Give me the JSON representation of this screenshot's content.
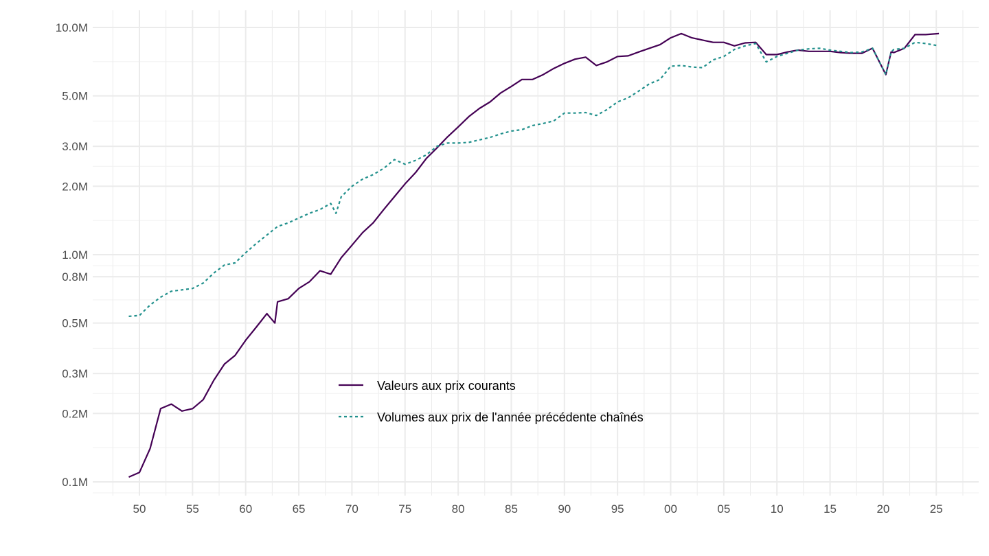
{
  "chart_data": {
    "type": "line",
    "title": "",
    "xlabel": "",
    "ylabel": "",
    "y_scale": "log10",
    "ylim": [
      0.09,
      11
    ],
    "xlim": [
      1947,
      2028
    ],
    "grid": true,
    "legend_position": "bottom-center inside plot",
    "x_ticks": [
      {
        "year": 1950,
        "label": "50"
      },
      {
        "year": 1955,
        "label": "55"
      },
      {
        "year": 1960,
        "label": "60"
      },
      {
        "year": 1965,
        "label": "65"
      },
      {
        "year": 1970,
        "label": "70"
      },
      {
        "year": 1975,
        "label": "75"
      },
      {
        "year": 1980,
        "label": "80"
      },
      {
        "year": 1985,
        "label": "85"
      },
      {
        "year": 1990,
        "label": "90"
      },
      {
        "year": 1995,
        "label": "95"
      },
      {
        "year": 2000,
        "label": "00"
      },
      {
        "year": 2005,
        "label": "05"
      },
      {
        "year": 2010,
        "label": "10"
      },
      {
        "year": 2015,
        "label": "15"
      },
      {
        "year": 2020,
        "label": "20"
      },
      {
        "year": 2025,
        "label": "25"
      }
    ],
    "y_ticks": [
      {
        "value": 0.1,
        "label": "0.1M"
      },
      {
        "value": 0.2,
        "label": "0.2M"
      },
      {
        "value": 0.3,
        "label": "0.3M"
      },
      {
        "value": 0.5,
        "label": "0.5M"
      },
      {
        "value": 0.8,
        "label": "0.8M"
      },
      {
        "value": 1.0,
        "label": "1.0M"
      },
      {
        "value": 2.0,
        "label": "2.0M"
      },
      {
        "value": 3.0,
        "label": "3.0M"
      },
      {
        "value": 5.0,
        "label": "5.0M"
      },
      {
        "value": 10.0,
        "label": "10.0M"
      }
    ],
    "series": [
      {
        "name": "Valeurs aux prix courants",
        "color": "#440154",
        "style": "solid",
        "x": [
          1949,
          1950,
          1951,
          1952,
          1953,
          1954,
          1955,
          1956,
          1957,
          1958,
          1959,
          1960,
          1961,
          1962,
          1962.75,
          1963,
          1964,
          1965,
          1966,
          1967,
          1968,
          1969,
          1970,
          1971,
          1972,
          1973,
          1974,
          1975,
          1976,
          1977,
          1978,
          1979,
          1980,
          1981,
          1982,
          1983,
          1984,
          1985,
          1986,
          1987,
          1988,
          1989,
          1990,
          1991,
          1992,
          1993,
          1994,
          1995,
          1996,
          1997,
          1998,
          1999,
          2000,
          2001,
          2002,
          2003,
          2004,
          2005,
          2006,
          2007,
          2008,
          2009,
          2010,
          2011,
          2012,
          2013,
          2014,
          2015,
          2016,
          2017,
          2018,
          2019,
          2020.25,
          2020.75,
          2021,
          2022,
          2023,
          2024,
          2025.25
        ],
        "values": [
          0.105,
          0.11,
          0.14,
          0.21,
          0.22,
          0.205,
          0.21,
          0.23,
          0.28,
          0.33,
          0.36,
          0.42,
          0.48,
          0.55,
          0.5,
          0.62,
          0.64,
          0.71,
          0.76,
          0.85,
          0.82,
          0.97,
          1.1,
          1.25,
          1.38,
          1.58,
          1.8,
          2.05,
          2.3,
          2.65,
          2.95,
          3.3,
          3.65,
          4.05,
          4.4,
          4.7,
          5.15,
          5.5,
          5.9,
          5.9,
          6.2,
          6.6,
          6.95,
          7.25,
          7.4,
          6.8,
          7.05,
          7.45,
          7.5,
          7.8,
          8.1,
          8.4,
          9.0,
          9.4,
          9.0,
          8.8,
          8.6,
          8.6,
          8.3,
          8.55,
          8.6,
          7.6,
          7.6,
          7.8,
          7.95,
          7.85,
          7.85,
          7.85,
          7.75,
          7.7,
          7.7,
          8.1,
          6.2,
          7.8,
          7.75,
          8.1,
          9.3,
          9.3,
          9.4
        ]
      },
      {
        "name": "Volumes aux prix de l'année précédente chaînés",
        "color": "#21908C",
        "style": "dashed",
        "x": [
          1949,
          1950,
          1951,
          1952,
          1953,
          1954,
          1955,
          1956,
          1957,
          1958,
          1959,
          1960,
          1961,
          1962,
          1963,
          1964,
          1965,
          1966,
          1967,
          1968,
          1968.5,
          1969,
          1970,
          1971,
          1972,
          1973,
          1974,
          1975,
          1976,
          1977,
          1978,
          1979,
          1980,
          1981,
          1982,
          1983,
          1984,
          1985,
          1986,
          1987,
          1988,
          1989,
          1990,
          1991,
          1992,
          1993,
          1994,
          1995,
          1996,
          1997,
          1998,
          1999,
          2000,
          2001,
          2002,
          2003,
          2004,
          2005,
          2006,
          2007,
          2008,
          2009,
          2010,
          2011,
          2012,
          2013,
          2014,
          2015,
          2016,
          2017,
          2018,
          2019,
          2020.25,
          2020.75,
          2021,
          2022,
          2023,
          2024,
          2025.25
        ],
        "values": [
          0.535,
          0.54,
          0.6,
          0.65,
          0.69,
          0.7,
          0.71,
          0.75,
          0.83,
          0.9,
          0.92,
          1.02,
          1.12,
          1.22,
          1.33,
          1.38,
          1.45,
          1.52,
          1.58,
          1.68,
          1.52,
          1.8,
          2.0,
          2.15,
          2.25,
          2.4,
          2.62,
          2.5,
          2.6,
          2.75,
          3.0,
          3.1,
          3.1,
          3.12,
          3.2,
          3.28,
          3.4,
          3.5,
          3.55,
          3.7,
          3.78,
          3.88,
          4.2,
          4.2,
          4.22,
          4.1,
          4.35,
          4.7,
          4.9,
          5.25,
          5.65,
          5.9,
          6.75,
          6.8,
          6.7,
          6.65,
          7.2,
          7.45,
          8.0,
          8.3,
          8.5,
          7.05,
          7.45,
          7.7,
          7.95,
          8.05,
          8.1,
          7.95,
          7.85,
          7.75,
          7.8,
          8.1,
          6.2,
          7.8,
          8.0,
          8.1,
          8.6,
          8.5,
          8.3
        ]
      }
    ]
  }
}
